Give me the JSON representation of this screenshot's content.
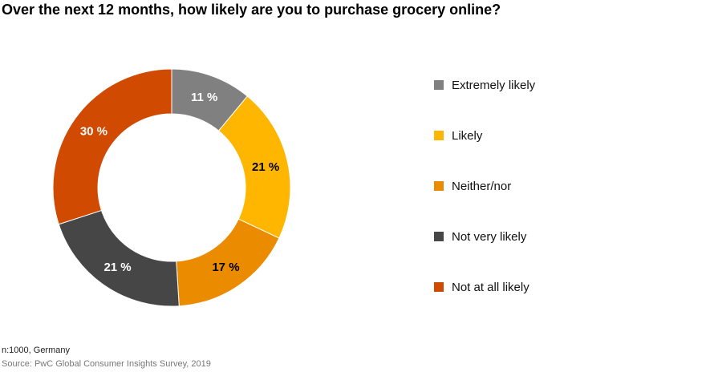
{
  "title": "Over the next 12 months, how likely are you to purchase grocery online?",
  "chart_data": {
    "type": "pie",
    "title": "Over the next 12 months, how likely are you to purchase grocery online?",
    "categories": [
      "Extremely likely",
      "Likely",
      "Neither/nor",
      "Not very likely",
      "Not at all likely"
    ],
    "values": [
      11,
      21,
      17,
      21,
      30
    ],
    "labels": [
      "11 %",
      "21 %",
      "17 %",
      "21 %",
      "30 %"
    ],
    "colors": [
      "#808080",
      "#FFB600",
      "#EB8C00",
      "#464646",
      "#D04A02"
    ],
    "label_colors": [
      "#ffffff",
      "#000000",
      "#000000",
      "#ffffff",
      "#ffffff"
    ],
    "legend": "right"
  },
  "footer": {
    "note": "n:1000, Germany",
    "source": "Source: PwC Global Consumer Insights Survey, 2019"
  }
}
